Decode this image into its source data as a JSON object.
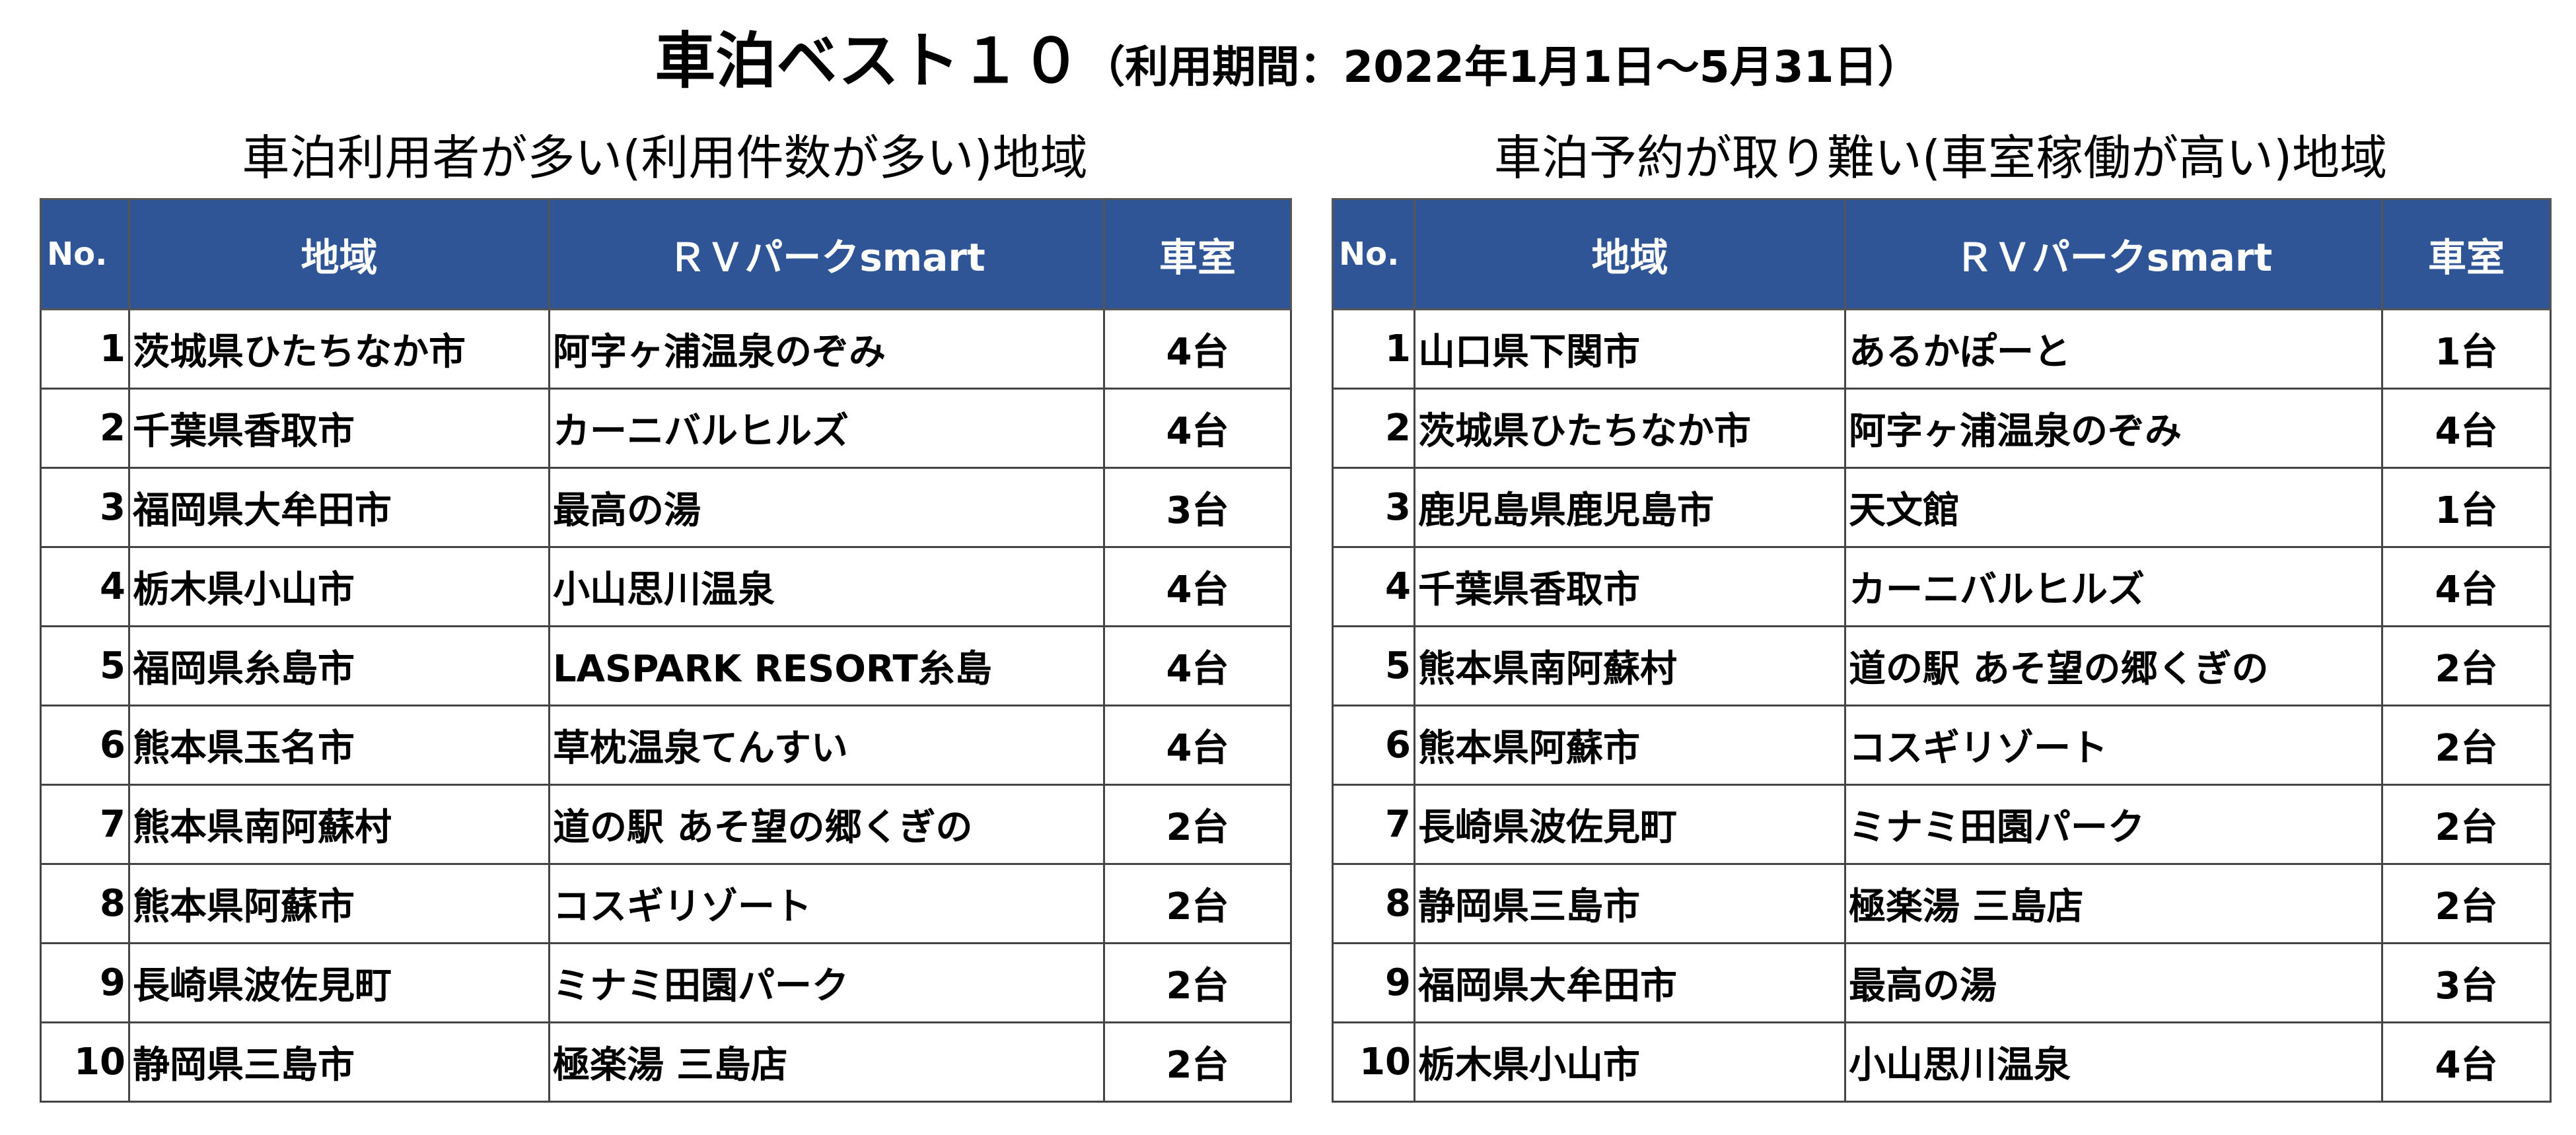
{
  "title": {
    "main": "車泊ベスト１０",
    "period": "（利用期間：2022年1月1日～5月31日）"
  },
  "left": {
    "subtitle": "車泊利用者が多い(利用件数が多い)地域",
    "headers": [
      "No.",
      "地域",
      "ＲＶパークsmart",
      "車室"
    ],
    "rows": [
      {
        "no": "1",
        "area": "茨城県ひたちなか市",
        "park": "阿字ヶ浦温泉のぞみ",
        "rooms": "4台"
      },
      {
        "no": "2",
        "area": "千葉県香取市",
        "park": "カーニバルヒルズ",
        "rooms": "4台"
      },
      {
        "no": "3",
        "area": "福岡県大牟田市",
        "park": "最高の湯",
        "rooms": "3台"
      },
      {
        "no": "4",
        "area": "栃木県小山市",
        "park": "小山思川温泉",
        "rooms": "4台"
      },
      {
        "no": "5",
        "area": "福岡県糸島市",
        "park": "LASPARK RESORT糸島",
        "rooms": "4台"
      },
      {
        "no": "6",
        "area": "熊本県玉名市",
        "park": "草枕温泉てんすい",
        "rooms": "4台"
      },
      {
        "no": "7",
        "area": "熊本県南阿蘇村",
        "park": "道の駅 あそ望の郷くぎの",
        "rooms": "2台"
      },
      {
        "no": "8",
        "area": "熊本県阿蘇市",
        "park": "コスギリゾート",
        "rooms": "2台"
      },
      {
        "no": "9",
        "area": "長崎県波佐見町",
        "park": "ミナミ田園パーク",
        "rooms": "2台"
      },
      {
        "no": "10",
        "area": "静岡県三島市",
        "park": "極楽湯 三島店",
        "rooms": "2台"
      }
    ]
  },
  "right": {
    "subtitle": "車泊予約が取り難い(車室稼働が高い)地域",
    "headers": [
      "No.",
      "地域",
      "ＲＶパークsmart",
      "車室"
    ],
    "rows": [
      {
        "no": "1",
        "area": "山口県下関市",
        "park": "あるかぽーと",
        "rooms": "1台"
      },
      {
        "no": "2",
        "area": "茨城県ひたちなか市",
        "park": "阿字ヶ浦温泉のぞみ",
        "rooms": "4台"
      },
      {
        "no": "3",
        "area": "鹿児島県鹿児島市",
        "park": "天文館",
        "rooms": "1台"
      },
      {
        "no": "4",
        "area": "千葉県香取市",
        "park": "カーニバルヒルズ",
        "rooms": "4台"
      },
      {
        "no": "5",
        "area": "熊本県南阿蘇村",
        "park": "道の駅 あそ望の郷くぎの",
        "rooms": "2台"
      },
      {
        "no": "6",
        "area": "熊本県阿蘇市",
        "park": "コスギリゾート",
        "rooms": "2台"
      },
      {
        "no": "7",
        "area": "長崎県波佐見町",
        "park": "ミナミ田園パーク",
        "rooms": "2台"
      },
      {
        "no": "8",
        "area": "静岡県三島市",
        "park": "極楽湯 三島店",
        "rooms": "2台"
      },
      {
        "no": "9",
        "area": "福岡県大牟田市",
        "park": "最高の湯",
        "rooms": "3台"
      },
      {
        "no": "10",
        "area": "栃木県小山市",
        "park": "小山思川温泉",
        "rooms": "4台"
      }
    ]
  }
}
